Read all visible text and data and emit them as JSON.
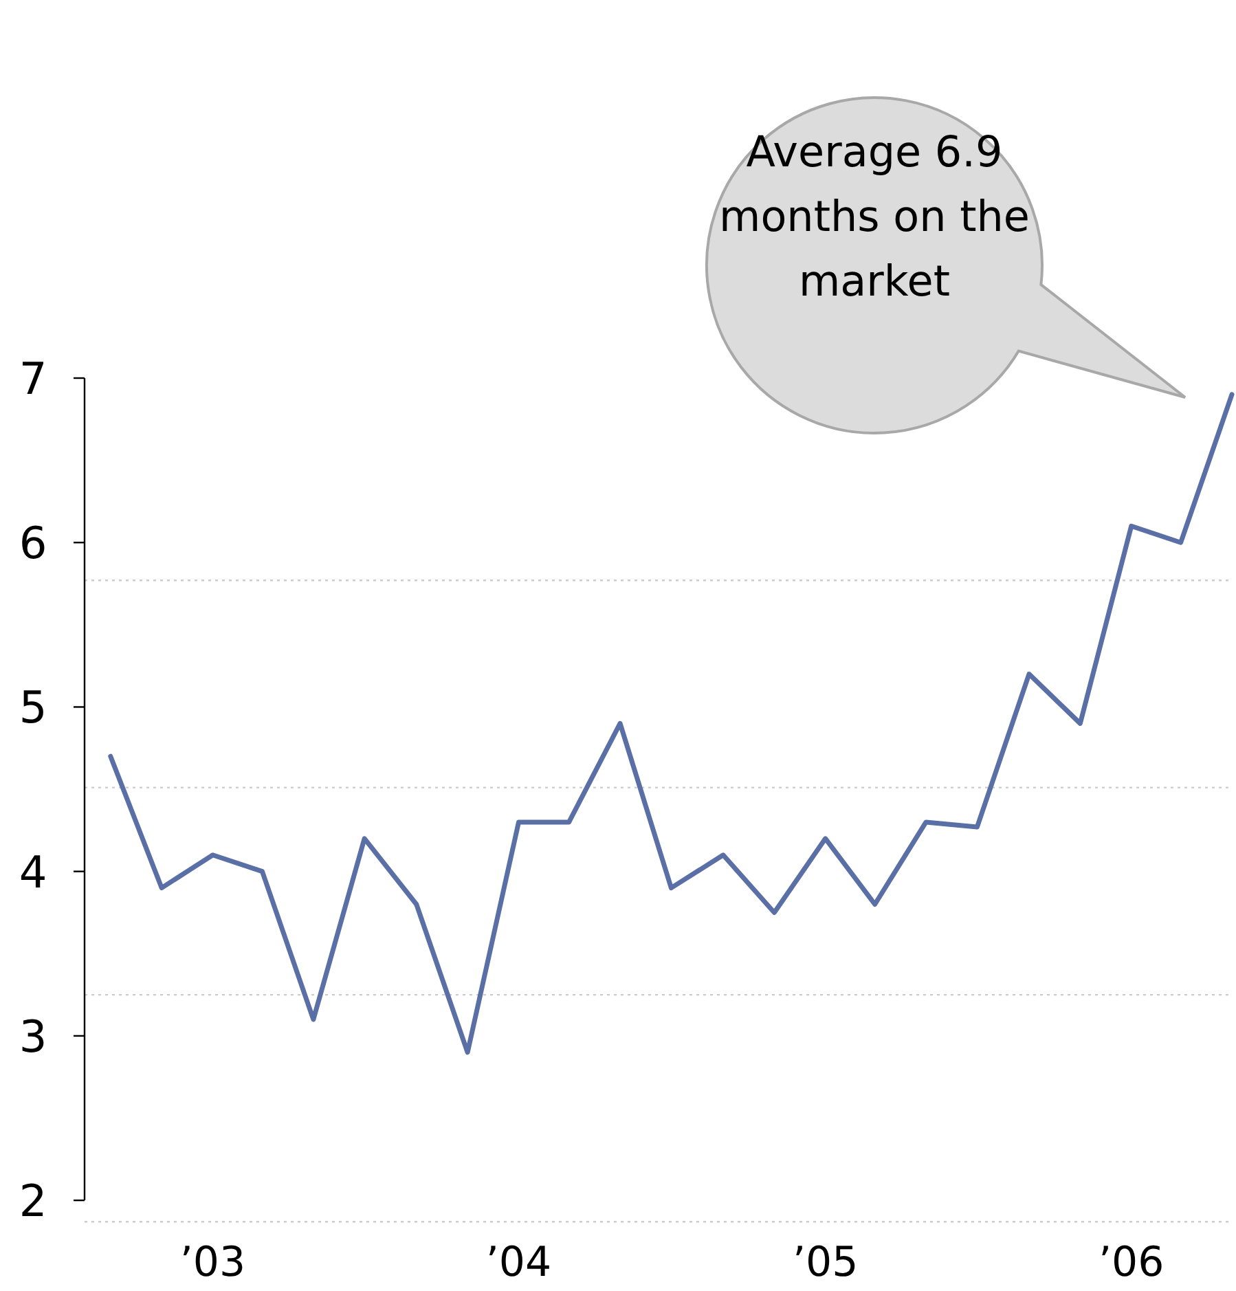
{
  "chart_data": {
    "type": "line",
    "x": [
      "2002-09",
      "2002-11",
      "2003-01",
      "2003-03",
      "2003-05",
      "2003-07",
      "2003-09",
      "2003-11",
      "2004-01",
      "2004-03",
      "2004-05",
      "2004-07",
      "2004-09",
      "2004-11",
      "2005-01",
      "2005-03",
      "2005-05",
      "2005-07",
      "2005-09",
      "2005-11",
      "2006-01",
      "2006-03",
      "2006-05"
    ],
    "series": [
      {
        "color": "#5a6fa5",
        "values": [
          4.7,
          3.9,
          4.1,
          4.0,
          3.1,
          4.2,
          3.8,
          2.9,
          4.3,
          4.3,
          4.9,
          3.9,
          4.1,
          3.75,
          4.2,
          3.8,
          4.3,
          4.27,
          5.2,
          4.9,
          6.1,
          6.0,
          6.9
        ]
      }
    ],
    "xlim": [
      "2002-08",
      "2006-05"
    ],
    "xticks": [
      {
        "value": "2003",
        "label": "’03"
      },
      {
        "value": "2004",
        "label": "’04"
      },
      {
        "value": "2005",
        "label": "’05"
      },
      {
        "value": "2006",
        "label": "’06"
      }
    ],
    "ylim": [
      1.85,
      7
    ],
    "yticks": [
      2,
      3,
      4,
      5,
      6,
      7
    ],
    "ref_lines": [
      {
        "axis": "y",
        "value": 5.77,
        "color": "#cccccc",
        "line_style": "dotted"
      },
      {
        "axis": "y",
        "value": 4.51,
        "color": "#cccccc",
        "line_style": "dotted"
      },
      {
        "axis": "y",
        "value": 3.25,
        "color": "#cccccc",
        "line_style": "dotted"
      },
      {
        "axis": "y",
        "value": 1.87,
        "color": "#cccccc",
        "line_style": "dotted"
      }
    ],
    "annotations": [
      "Average 6.9 months on the market"
    ],
    "marker": "none",
    "line_style": "solid",
    "grid": false
  }
}
